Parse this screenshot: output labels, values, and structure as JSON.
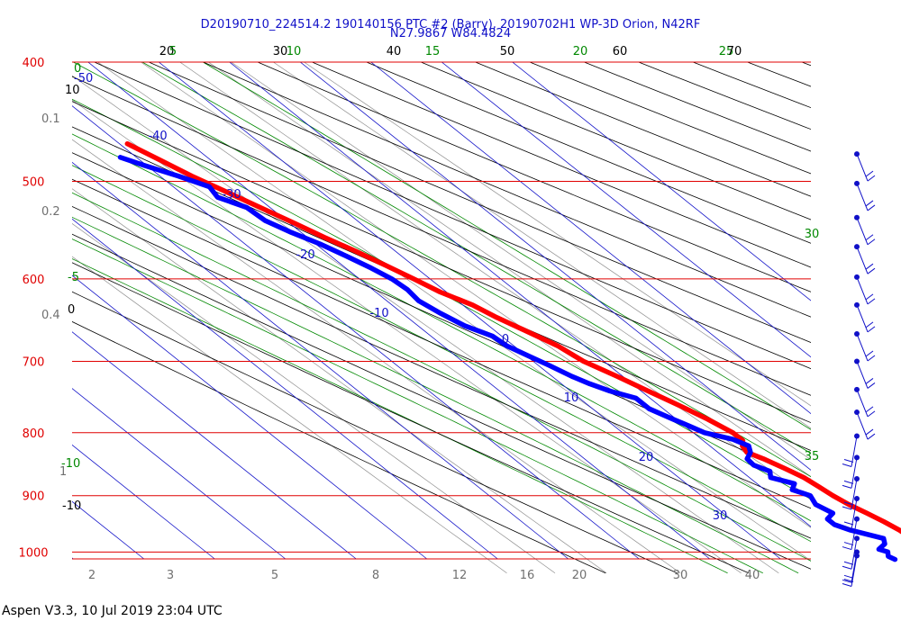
{
  "title": {
    "line1": "D20190710_224514.2 190140156 PTC #2 (Barry), 20190702H1 WP-3D Orion, N42RF",
    "line2": "N27.9867 W84.4824"
  },
  "footer": "Aspen V3.3, 10 Jul 2019  23:04 UTC",
  "colors": {
    "isobar": "#e00000",
    "isotherm": "#1010c8",
    "dry_adiabat": "#000000",
    "moist_adiabat": "#008800",
    "mixing_ratio": "#909090",
    "temperature": "#ff0000",
    "dewpoint": "#0000ff",
    "wind_barb": "#1010c8"
  },
  "chart_data": {
    "type": "line",
    "chart_kind": "skew-T log-P",
    "y_axis": {
      "label_unit": "hPa",
      "pressure_labels": [
        "400",
        "500",
        "600",
        "700",
        "800",
        "900",
        "1000"
      ],
      "pressure_levels": [
        400,
        500,
        600,
        700,
        800,
        900,
        1000
      ]
    },
    "top_labels": [
      {
        "text": "20",
        "color": "black"
      },
      {
        "text": "5",
        "color": "green"
      },
      {
        "text": "30",
        "color": "black"
      },
      {
        "text": "10",
        "color": "green"
      },
      {
        "text": "40",
        "color": "black"
      },
      {
        "text": "15",
        "color": "green"
      },
      {
        "text": "50",
        "color": "black"
      },
      {
        "text": "20",
        "color": "green"
      },
      {
        "text": "60",
        "color": "black"
      },
      {
        "text": "25",
        "color": "green"
      },
      {
        "text": "70",
        "color": "black"
      }
    ],
    "left_labels": [
      {
        "text": "0",
        "color": "green"
      },
      {
        "text": "-50",
        "color": "blue"
      },
      {
        "text": "10",
        "color": "black"
      },
      {
        "text": "0.1",
        "color": "gray"
      },
      {
        "text": "0.2",
        "color": "gray"
      },
      {
        "text": "-5",
        "color": "green"
      },
      {
        "text": "0",
        "color": "black"
      },
      {
        "text": "0.4",
        "color": "gray"
      },
      {
        "text": "-10",
        "color": "green"
      },
      {
        "text": "1",
        "color": "gray"
      },
      {
        "text": "-10",
        "color": "black"
      }
    ],
    "isotherm_labels": [
      "-40",
      "-30",
      "-20",
      "-10",
      "0",
      "10",
      "20",
      "30"
    ],
    "right_labels": [
      "30",
      "35"
    ],
    "bottom_labels": [
      "2",
      "3",
      "5",
      "8",
      "12",
      "16",
      "20",
      "30",
      "40"
    ],
    "series": [
      {
        "color": "red",
        "points": [
          {
            "p": 1013,
            "t": 26.5
          },
          {
            "p": 1005,
            "t": 25.2
          },
          {
            "p": 995,
            "t": 24.0
          },
          {
            "p": 985,
            "t": 23.0
          },
          {
            "p": 975,
            "t": 22.2
          },
          {
            "p": 960,
            "t": 21.9
          },
          {
            "p": 945,
            "t": 21.2
          },
          {
            "p": 930,
            "t": 20.3
          },
          {
            "p": 915,
            "t": 19.3
          },
          {
            "p": 900,
            "t": 18.6
          },
          {
            "p": 885,
            "t": 18.2
          },
          {
            "p": 870,
            "t": 17.7
          },
          {
            "p": 855,
            "t": 16.6
          },
          {
            "p": 840,
            "t": 15.3
          },
          {
            "p": 830,
            "t": 14.1
          },
          {
            "p": 820,
            "t": 14.6
          },
          {
            "p": 812,
            "t": 15.6
          },
          {
            "p": 800,
            "t": 15.6
          },
          {
            "p": 780,
            "t": 14.4
          },
          {
            "p": 760,
            "t": 12.8
          },
          {
            "p": 740,
            "t": 11.0
          },
          {
            "p": 720,
            "t": 9.2
          },
          {
            "p": 700,
            "t": 7.1
          },
          {
            "p": 680,
            "t": 6.2
          },
          {
            "p": 660,
            "t": 4.2
          },
          {
            "p": 645,
            "t": 2.6
          },
          {
            "p": 630,
            "t": 1.4
          },
          {
            "p": 615,
            "t": -0.9
          },
          {
            "p": 600,
            "t": -2.3
          },
          {
            "p": 585,
            "t": -3.9
          },
          {
            "p": 570,
            "t": -5.6
          },
          {
            "p": 555,
            "t": -7.6
          },
          {
            "p": 540,
            "t": -9.4
          },
          {
            "p": 525,
            "t": -11.4
          },
          {
            "p": 510,
            "t": -13.4
          },
          {
            "p": 495,
            "t": -15.5
          },
          {
            "p": 480,
            "t": -17.2
          },
          {
            "p": 466,
            "t": -18.9
          }
        ]
      },
      {
        "color": "blue",
        "points": [
          {
            "p": 1014,
            "t": 16.1
          },
          {
            "p": 1008,
            "t": 15.7
          },
          {
            "p": 1000,
            "t": 16.4
          },
          {
            "p": 995,
            "t": 15.6
          },
          {
            "p": 985,
            "t": 17.4
          },
          {
            "p": 975,
            "t": 18.2
          },
          {
            "p": 960,
            "t": 15.0
          },
          {
            "p": 950,
            "t": 13.7
          },
          {
            "p": 940,
            "t": 13.7
          },
          {
            "p": 930,
            "t": 15.5
          },
          {
            "p": 915,
            "t": 14.6
          },
          {
            "p": 900,
            "t": 15.4
          },
          {
            "p": 890,
            "t": 13.9
          },
          {
            "p": 880,
            "t": 15.3
          },
          {
            "p": 870,
            "t": 13.0
          },
          {
            "p": 860,
            "t": 14.0
          },
          {
            "p": 850,
            "t": 12.8
          },
          {
            "p": 840,
            "t": 13.0
          },
          {
            "p": 830,
            "t": 14.6
          },
          {
            "p": 820,
            "t": 15.5
          },
          {
            "p": 810,
            "t": 14.4
          },
          {
            "p": 800,
            "t": 11.6
          },
          {
            "p": 790,
            "t": 10.6
          },
          {
            "p": 780,
            "t": 9.5
          },
          {
            "p": 765,
            "t": 8.0
          },
          {
            "p": 750,
            "t": 8.0
          },
          {
            "p": 740,
            "t": 5.6
          },
          {
            "p": 730,
            "t": 4.0
          },
          {
            "p": 720,
            "t": 2.8
          },
          {
            "p": 705,
            "t": 1.5
          },
          {
            "p": 695,
            "t": 0.5
          },
          {
            "p": 680,
            "t": -1.0
          },
          {
            "p": 668,
            "t": -1.3
          },
          {
            "p": 655,
            "t": -3.4
          },
          {
            "p": 640,
            "t": -4.6
          },
          {
            "p": 625,
            "t": -5.5
          },
          {
            "p": 612,
            "t": -5.1
          },
          {
            "p": 600,
            "t": -5.4
          },
          {
            "p": 588,
            "t": -6.4
          },
          {
            "p": 575,
            "t": -7.8
          },
          {
            "p": 562,
            "t": -9.4
          },
          {
            "p": 550,
            "t": -11.4
          },
          {
            "p": 538,
            "t": -13.0
          },
          {
            "p": 525,
            "t": -13.3
          },
          {
            "p": 515,
            "t": -15.6
          },
          {
            "p": 505,
            "t": -14.9
          },
          {
            "p": 495,
            "t": -17.4
          },
          {
            "p": 485,
            "t": -20.4
          },
          {
            "p": 478,
            "t": -22.3
          }
        ]
      }
    ],
    "wind_barbs": {
      "levels_hpa": [
        475,
        502,
        535,
        565,
        598,
        630,
        665,
        700,
        738,
        770,
        805,
        838,
        872,
        905,
        940,
        975,
        1000,
        1007
      ],
      "note": "barbs drawn at right edge"
    }
  }
}
